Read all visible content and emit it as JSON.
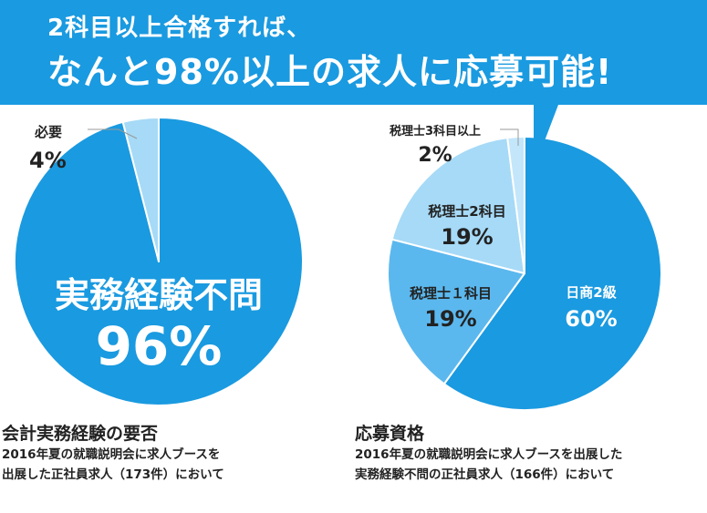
{
  "banner": {
    "line1": "2科目以上合格すれば、",
    "line2": "なんと98%以上の求人に応募可能!"
  },
  "colors": {
    "banner": "#1a9ae0",
    "dark": "#1a9ae0",
    "medium": "#5bb8ee",
    "light": "#a6daf7",
    "lighter": "#c3e6fa",
    "white": "#ffffff",
    "text": "#222222"
  },
  "chart_data": [
    {
      "type": "pie",
      "title": "会計実務経験の要否",
      "subtitle": [
        "2016年夏の就職説明会に求人ブースを",
        "出展した正社員求人（173件）において"
      ],
      "slices": [
        {
          "label": "実務経験不問",
          "value": 96,
          "display": "96%"
        },
        {
          "label": "必要",
          "value": 4,
          "display": "4%"
        }
      ]
    },
    {
      "type": "pie",
      "title": "応募資格",
      "subtitle": [
        "2016年夏の就職説明会に求人ブースを出展した",
        "実務経験不問の正社員求人（166件）において"
      ],
      "slices": [
        {
          "label": "日商2級",
          "value": 60,
          "display": "60%"
        },
        {
          "label": "税理士１科目",
          "value": 19,
          "display": "19%"
        },
        {
          "label": "税理士2科目",
          "value": 19,
          "display": "19%"
        },
        {
          "label": "税理士3科目以上",
          "value": 2,
          "display": "2%"
        }
      ]
    }
  ]
}
